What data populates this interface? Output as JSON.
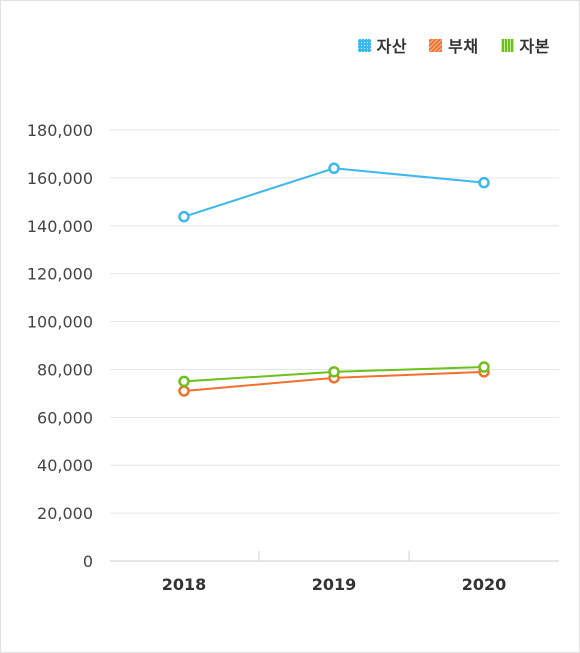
{
  "chart_data": {
    "type": "line",
    "categories": [
      "2018",
      "2019",
      "2020"
    ],
    "series": [
      {
        "name": "자산",
        "values": [
          143800,
          164000,
          158000
        ],
        "color": "#3db8ee"
      },
      {
        "name": "부채",
        "values": [
          71000,
          76500,
          79000
        ],
        "color": "#f2702c"
      },
      {
        "name": "자본",
        "values": [
          75000,
          79000,
          81000
        ],
        "color": "#6cc11a"
      }
    ],
    "ylim": [
      0,
      180000
    ],
    "yticks": [
      0,
      20000,
      40000,
      60000,
      80000,
      100000,
      120000,
      140000,
      160000,
      180000
    ],
    "ytick_labels": [
      "0",
      "20,000",
      "40,000",
      "60,000",
      "80,000",
      "100,000",
      "120,000",
      "140,000",
      "160,000",
      "180,000"
    ],
    "grid": true,
    "legend_position": "top-right"
  }
}
